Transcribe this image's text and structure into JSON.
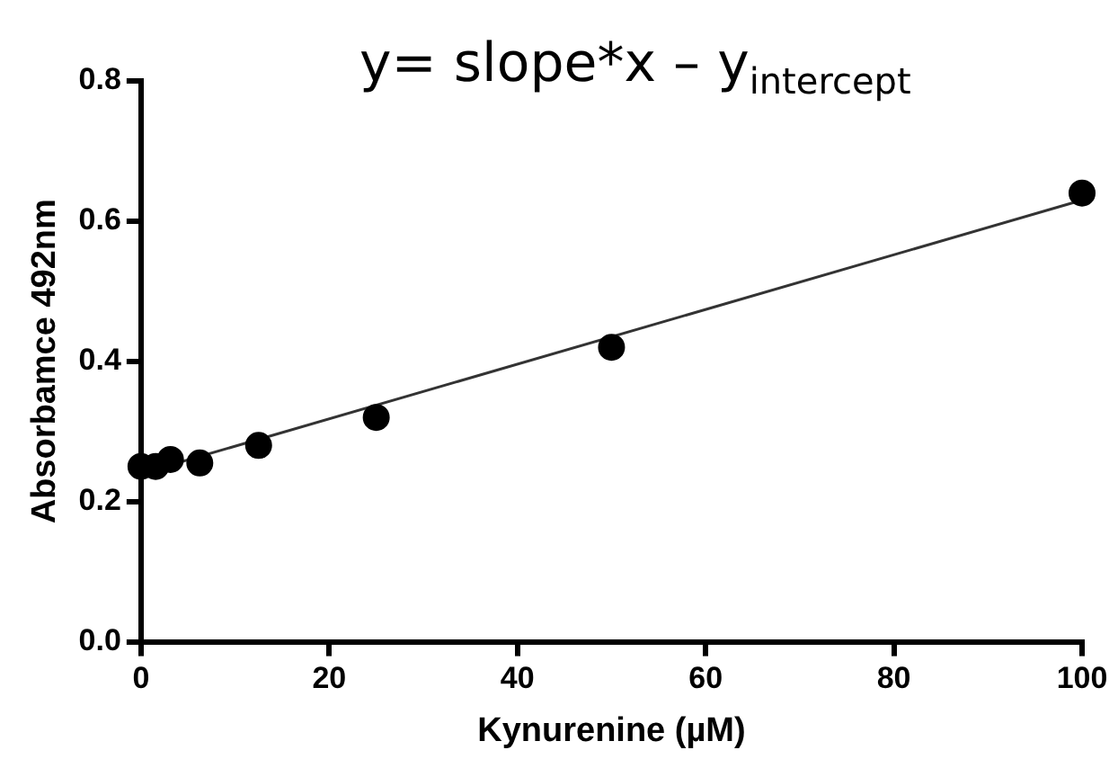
{
  "chart_data": {
    "type": "scatter",
    "xlabel": "Kynurenine (µM)",
    "ylabel": "Absorbamce 492nm",
    "annotations": [
      "y= slope*x – y$_{intercept}$"
    ],
    "xlim": [
      0,
      100
    ],
    "xticks": [
      0,
      20,
      40,
      60,
      80,
      100
    ],
    "ylim": [
      0,
      0.8
    ],
    "yticks": [
      {
        "value": 0,
        "label": "0.0"
      },
      0.2,
      0.4,
      0.6,
      0.8
    ],
    "grid": false,
    "legend": false,
    "marker": "circle",
    "series": [
      {
        "color": "#000000",
        "x": [
          0,
          1.56,
          3.13,
          6.25,
          12.5,
          25,
          50,
          100
        ],
        "values": [
          0.25,
          0.25,
          0.26,
          0.255,
          0.28,
          0.32,
          0.42,
          0.64
        ]
      },
      {
        "type": "line",
        "color": "#333333",
        "marker": "none",
        "x": [
          0,
          100
        ],
        "values": [
          0.24,
          0.63
        ]
      }
    ]
  }
}
